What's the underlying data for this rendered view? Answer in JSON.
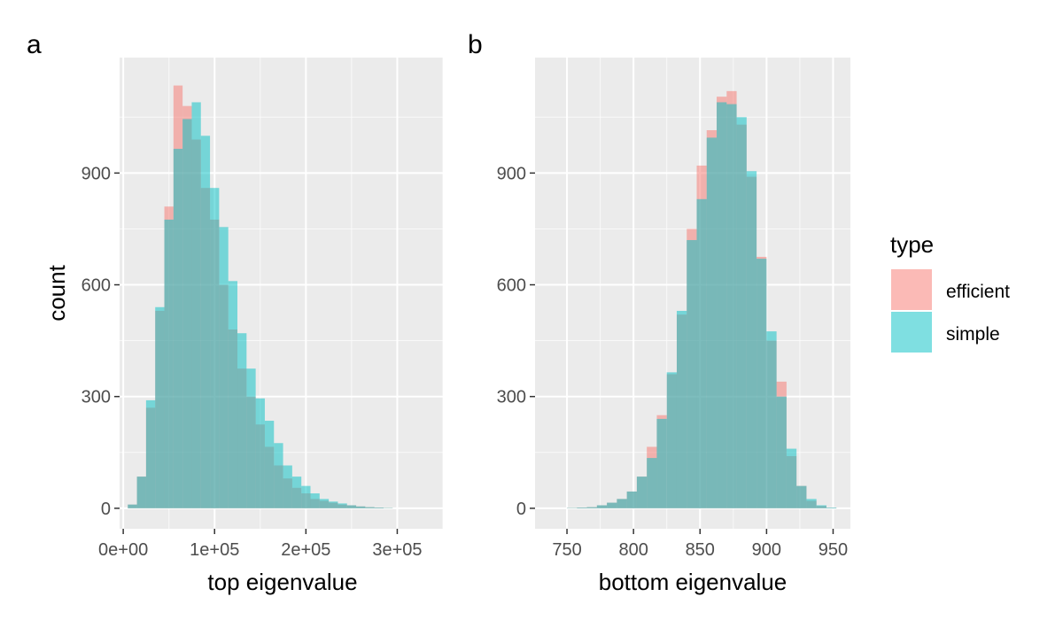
{
  "colors": {
    "efficient": "#f8766d",
    "simple": "#00bfc4",
    "bar_opacity": 0.5,
    "panel_background": "#ebebeb",
    "grid": "#ffffff"
  },
  "chart_data": [
    {
      "type": "histogram",
      "tag": "a",
      "xlabel": "top eigenvalue",
      "ylabel": "count",
      "xlim": [
        -4000,
        350000
      ],
      "ylim": [
        -55,
        1210
      ],
      "xticks": [
        0,
        100000,
        200000,
        300000
      ],
      "xtick_labels": [
        "0e+00",
        "1e+05",
        "2e+05",
        "3e+05"
      ],
      "yticks": [
        0,
        300,
        600,
        900
      ],
      "ytick_labels": [
        "0",
        "300",
        "600",
        "900"
      ],
      "bin_start": 5000,
      "bin_width": 10000,
      "series": [
        {
          "name": "efficient",
          "values": [
            10,
            85,
            270,
            530,
            810,
            1135,
            1080,
            990,
            860,
            775,
            600,
            480,
            375,
            300,
            225,
            165,
            115,
            80,
            55,
            40,
            25,
            20,
            15,
            10,
            8,
            5,
            3,
            2,
            1
          ]
        },
        {
          "name": "simple",
          "values": [
            10,
            85,
            290,
            540,
            775,
            965,
            1045,
            1090,
            1000,
            860,
            755,
            610,
            470,
            375,
            295,
            235,
            175,
            115,
            85,
            60,
            40,
            25,
            18,
            13,
            8,
            5,
            3,
            2,
            1
          ]
        }
      ]
    },
    {
      "type": "histogram",
      "tag": "b",
      "xlabel": "bottom eigenvalue",
      "ylabel": "",
      "xlim": [
        726,
        963
      ],
      "ylim": [
        -55,
        1210
      ],
      "xticks": [
        750,
        800,
        850,
        900,
        950
      ],
      "xtick_labels": [
        "750",
        "800",
        "850",
        "900",
        "950"
      ],
      "yticks": [
        0,
        300,
        600,
        900
      ],
      "ytick_labels": [
        "0",
        "300",
        "600",
        "900"
      ],
      "bin_start": 735,
      "bin_width": 7.5,
      "series": [
        {
          "name": "efficient",
          "values": [
            0,
            0,
            1,
            2,
            3,
            8,
            15,
            25,
            45,
            85,
            165,
            250,
            360,
            520,
            750,
            920,
            1015,
            1105,
            1120,
            1030,
            890,
            675,
            450,
            340,
            140,
            60,
            20,
            6,
            1
          ]
        },
        {
          "name": "simple",
          "values": [
            0,
            0,
            1,
            2,
            3,
            8,
            15,
            25,
            45,
            85,
            135,
            240,
            365,
            530,
            720,
            830,
            995,
            1090,
            1085,
            1050,
            905,
            670,
            475,
            300,
            160,
            60,
            25,
            8,
            2
          ]
        }
      ]
    }
  ],
  "legend": {
    "title": "type",
    "items": [
      {
        "label": "efficient"
      },
      {
        "label": "simple"
      }
    ]
  }
}
